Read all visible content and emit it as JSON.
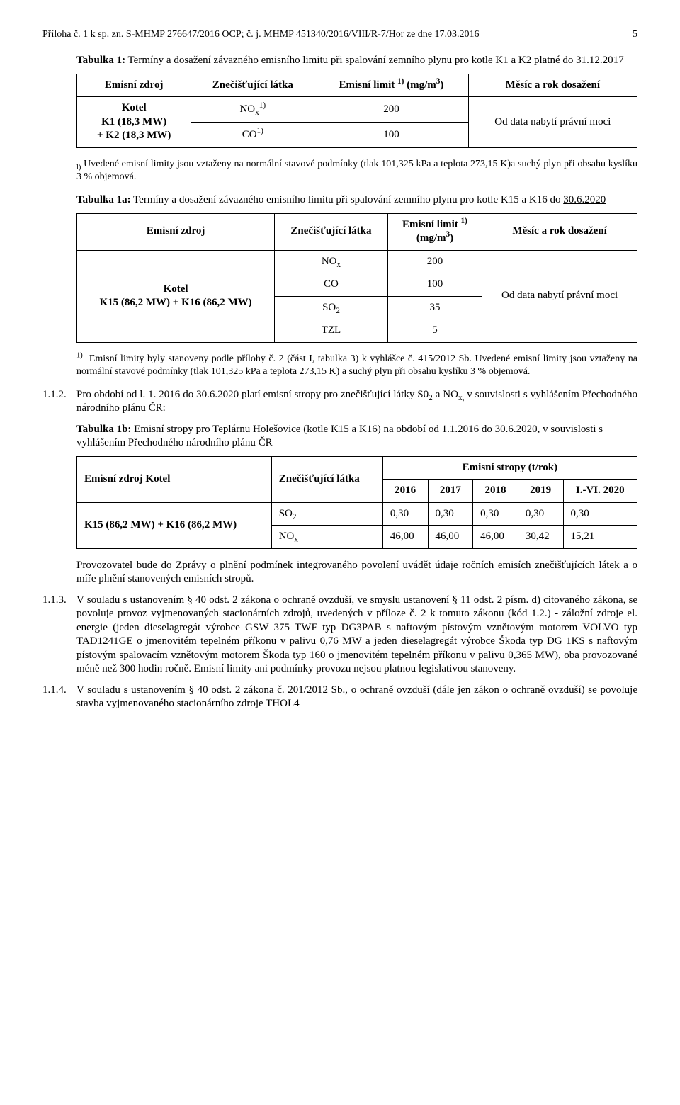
{
  "header": {
    "left": "Příloha č. 1 k sp. zn. S-MHMP 276647/2016 OCP; č. j. MHMP 451340/2016/VIII/R-7/Hor ze dne 17.03.2016",
    "page": "5"
  },
  "tab1": {
    "title_pre": "Tabulka 1:",
    "title_rest": " Termíny a dosažení závazného emisního limitu při spalování zemního plynu pro kotle K1 a K2 platné ",
    "title_link": "do 31.12.2017",
    "h1": "Emisní zdroj",
    "h2": "Znečišťující látka",
    "h3a": "Emisní limit ",
    "h3b": " (mg/m",
    "h4": "Měsíc a rok dosažení",
    "src_label": "Kotel\nK1 (18,3 MW)\n+ K2 (18,3 MW)",
    "r1c2": "NO",
    "r1c3": "200",
    "r2c2": "CO",
    "r2c3": "100",
    "col4": "Od data nabytí právní moci",
    "note": "Uvedené emisní limity jsou vztaženy na normální stavové podmínky (tlak 101,325 kPa a teplota 273,15 K)a suchý plyn při obsahu kyslíku 3 % objemová."
  },
  "tab1a": {
    "title_pre": "Tabulka 1a:",
    "title_rest": " Termíny a dosažení závazného emisního limitu při spalování zemního plynu pro kotle K15 a K16 do ",
    "title_link": "30.6.2020",
    "h1": "Emisní zdroj",
    "h2": "Znečišťující látka",
    "h3a": "Emisní limit ",
    "h3b": "(mg/m",
    "h4": "Měsíc a rok dosažení",
    "src_label": "Kotel\nK15 (86,2 MW) + K16 (86,2 MW)",
    "r1": {
      "p": "NO",
      "v": "200"
    },
    "r2": {
      "p": "CO",
      "v": "100"
    },
    "r3": {
      "p": "SO",
      "v": "35"
    },
    "r4": {
      "p": "TZL",
      "v": "5"
    },
    "col4": "Od data nabytí právní moci",
    "note": "Emisní limity byly stanoveny podle přílohy č. 2 (část I, tabulka 3) k vyhlášce č. 415/2012 Sb. Uvedené emisní limity jsou vztaženy na normální stavové podmínky (tlak 101,325 kPa a teplota 273,15 K) a suchý plyn při obsahu kyslíku 3 % objemová."
  },
  "sec112": {
    "num": "1.1.2.",
    "text_a": "Pro období od l. 1. 2016 do 30.6.2020 platí emisní stropy pro znečišťující látky S0",
    "text_b": " a NO",
    "text_c": " v souvislosti s vyhlášením Přechodného národního plánu ČR:"
  },
  "tab1b": {
    "title_pre": "Tabulka 1b:",
    "title_rest": " Emisní stropy pro Teplárnu Holešovice  (kotle K15 a K16) na období od 1.1.2016 do 30.6.2020, v souvislosti s vyhlášením Přechodného národního plánu ČR",
    "h_src": "Emisní zdroj Kotel",
    "h_pol": "Znečišťující látka",
    "h_stropy": "Emisní stropy (t/rok)",
    "y2016": "2016",
    "y2017": "2017",
    "y2018": "2018",
    "y2019": "2019",
    "y2020": "I.-VI. 2020",
    "src": "K15 (86,2 MW) + K16 (86,2 MW)",
    "so2": {
      "label": "SO",
      "v2016": "0,30",
      "v2017": "0,30",
      "v2018": "0,30",
      "v2019": "0,30",
      "v2020": "0,30"
    },
    "nox": {
      "label": "NO",
      "v2016": "46,00",
      "v2017": "46,00",
      "v2018": "46,00",
      "v2019": "30,42",
      "v2020": "15,21"
    },
    "after": "Provozovatel bude do Zprávy o plnění podmínek integrovaného povolení uvádět údaje ročních emisích znečišťujících látek a o míře plnění stanovených emisních stropů."
  },
  "sec113": {
    "num": "1.1.3.",
    "text": "V souladu s ustanovením § 40 odst. 2 zákona o ochraně ovzduší, ve smyslu ustanovení § 11 odst. 2 písm. d) citovaného zákona, se povoluje provoz vyjmenovaných stacionárních zdrojů, uvedených v příloze č. 2 k tomuto zákonu (kód 1.2.) - záložní zdroje el. energie (jeden dieselagregát výrobce GSW 375 TWF typ DG3PAB s naftovým pístovým vznětovým motorem VOLVO typ TAD1241GE o jmenovitém tepelném příkonu v palivu 0,76 MW a jeden dieselagregát výrobce Škoda typ DG 1KS s naftovým pístovým spalovacím vznětovým motorem Škoda typ 160 o jmenovitém tepelném příkonu v palivu 0,365 MW), oba provozované méně než 300 hodin ročně. Emisní limity ani podmínky provozu nejsou platnou legislativou stanoveny."
  },
  "sec114": {
    "num": "1.1.4.",
    "text": "V souladu s ustanovením § 40 odst. 2 zákona č. 201/2012 Sb., o ochraně ovzduší (dále jen zákon o ochraně ovzduší) se povoluje stavba vyjmenovaného stacionárního zdroje THOL4"
  }
}
